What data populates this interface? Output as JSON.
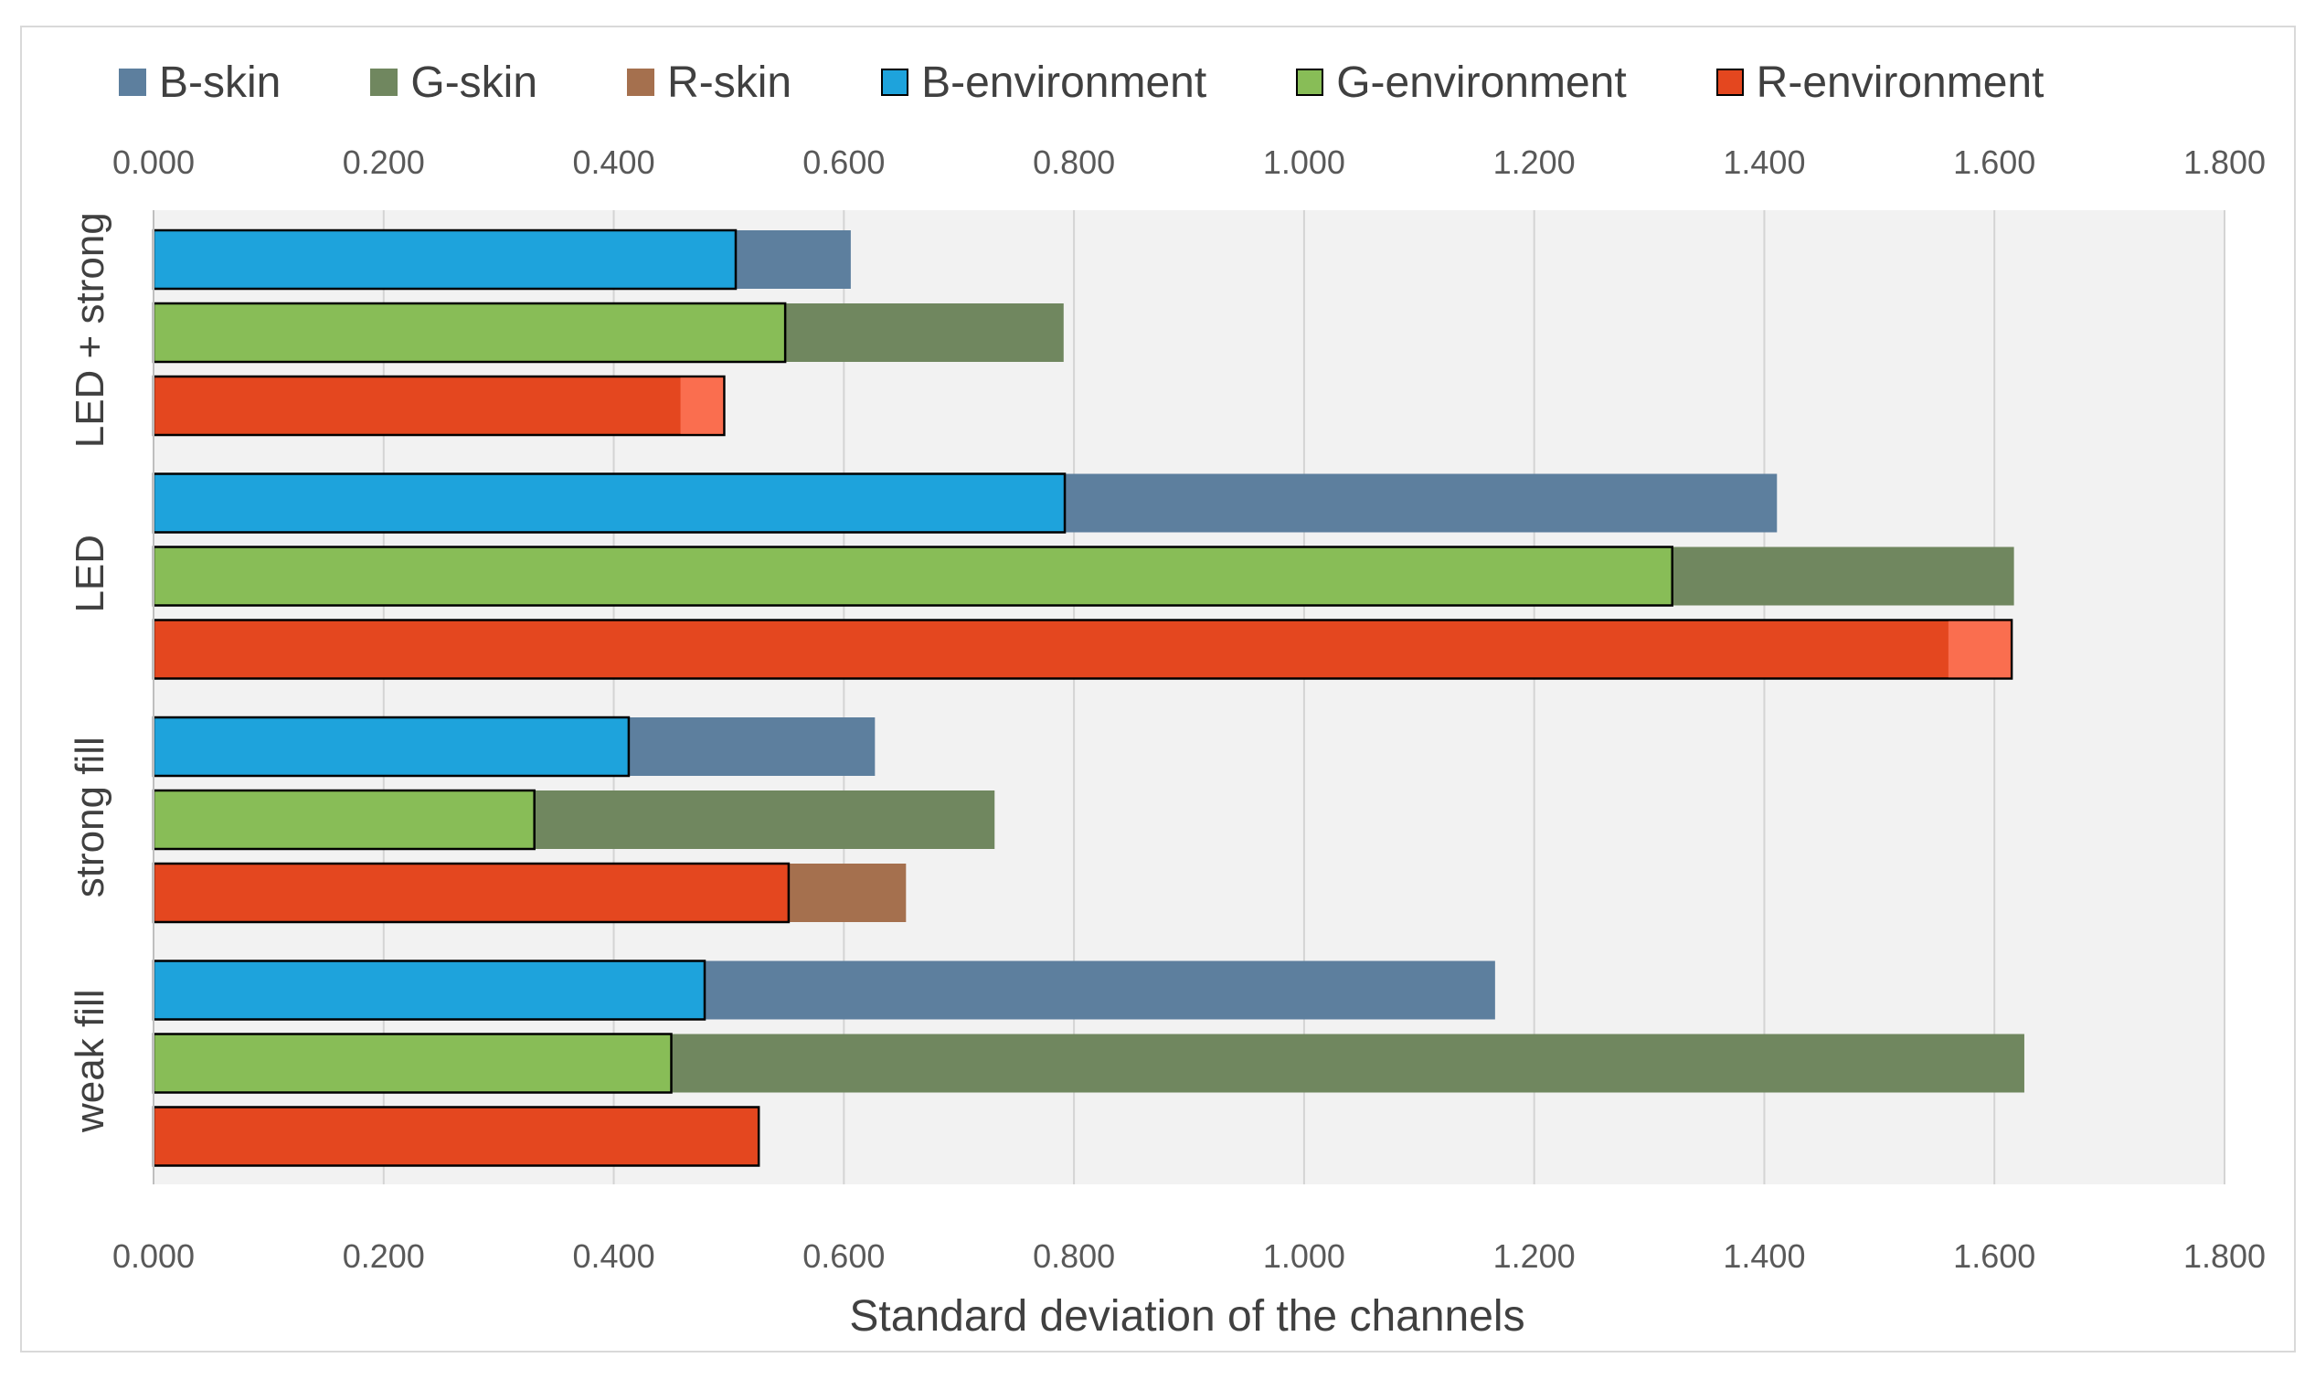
{
  "chart_data": {
    "type": "bar",
    "orientation": "horizontal",
    "xlabel": "Standard deviation of the channels",
    "xlim": [
      0,
      1.8
    ],
    "xticks": [
      "0.000",
      "0.200",
      "0.400",
      "0.600",
      "0.800",
      "1.000",
      "1.200",
      "1.400",
      "1.600",
      "1.800"
    ],
    "grid": true,
    "legend_position": "top",
    "categories": [
      "LED + strong",
      "LED",
      "strong fill",
      "weak fill"
    ],
    "channels": [
      "B",
      "G",
      "R"
    ],
    "series": [
      {
        "name": "B-skin",
        "channel": "B",
        "group": "skin",
        "color": "#5d7f9e",
        "values": [
          0.606,
          1.411,
          0.627,
          1.166
        ]
      },
      {
        "name": "G-skin",
        "channel": "G",
        "group": "skin",
        "color": "#70875f",
        "values": [
          0.791,
          1.617,
          0.731,
          1.626
        ]
      },
      {
        "name": "R-skin",
        "channel": "R",
        "group": "skin",
        "color": "#a5704e",
        "values": [
          0.458,
          1.56,
          0.654,
          0.0
        ]
      },
      {
        "name": "B-environment",
        "channel": "B",
        "group": "environment",
        "color": "#1ea3dc",
        "values": [
          0.506,
          0.792,
          0.413,
          0.479
        ]
      },
      {
        "name": "G-environment",
        "channel": "G",
        "group": "environment",
        "color": "#88bd57",
        "values": [
          0.549,
          1.32,
          0.331,
          0.45
        ]
      },
      {
        "name": "R-environment",
        "channel": "R",
        "group": "environment",
        "color": "#e4471f",
        "values": [
          0.496,
          1.615,
          0.552,
          0.526
        ]
      }
    ],
    "env_over_skin_color": "#fa6e4f"
  }
}
